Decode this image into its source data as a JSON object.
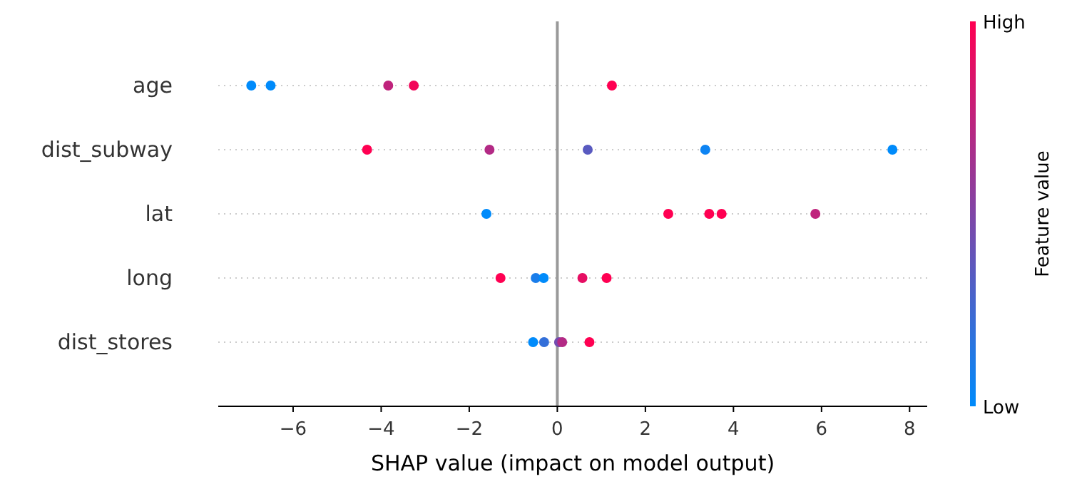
{
  "chart_data": {
    "type": "scatter",
    "orientation": "horizontal",
    "xlabel": "SHAP value (impact on model output)",
    "clabel": "Feature value",
    "categories": [
      "age",
      "dist_subway",
      "lat",
      "long",
      "dist_stores"
    ],
    "series": [
      {
        "values": [
          -6.95,
          -4.32,
          -1.61,
          -1.29,
          -0.55
        ],
        "colors": [
          "#008bfb",
          "#ff0052",
          "#008bfb",
          "#ff0052",
          "#008bfb"
        ]
      },
      {
        "values": [
          -6.51,
          -1.54,
          2.52,
          -0.49,
          -0.3
        ],
        "colors": [
          "#008bfb",
          "#b32a85",
          "#ff0052",
          "#1a7dea",
          "#336fd9"
        ]
      },
      {
        "values": [
          -3.84,
          0.69,
          3.45,
          -0.31,
          0.04
        ],
        "colors": [
          "#bf237c",
          "#595ac0",
          "#ff0052",
          "#008bfb",
          "#734caf"
        ]
      },
      {
        "values": [
          -3.26,
          3.36,
          3.73,
          0.57,
          0.11
        ],
        "colors": [
          "#f2075a",
          "#0d84f3",
          "#ff0052",
          "#e60e63",
          "#b32a85"
        ]
      },
      {
        "values": [
          1.24,
          7.61,
          5.86,
          1.12,
          0.73
        ],
        "colors": [
          "#ff0052",
          "#008bfb",
          "#bf237c",
          "#ff0052",
          "#ff0052"
        ]
      }
    ],
    "xlim": [
      -7.7,
      8.4
    ],
    "xticks": [
      {
        "value": -6,
        "label": "−6"
      },
      {
        "value": -4,
        "label": "−4"
      },
      {
        "value": -2,
        "label": "−2"
      },
      0,
      2,
      4,
      6,
      8
    ],
    "clim": [
      0,
      1
    ],
    "cticks": [
      {
        "value": 0,
        "label": "Low"
      },
      {
        "value": 1,
        "label": "High"
      }
    ],
    "ref_lines": [
      {
        "axis": "x",
        "value": 0,
        "color": "#999999"
      }
    ],
    "grid": "y",
    "marker": "circle"
  }
}
